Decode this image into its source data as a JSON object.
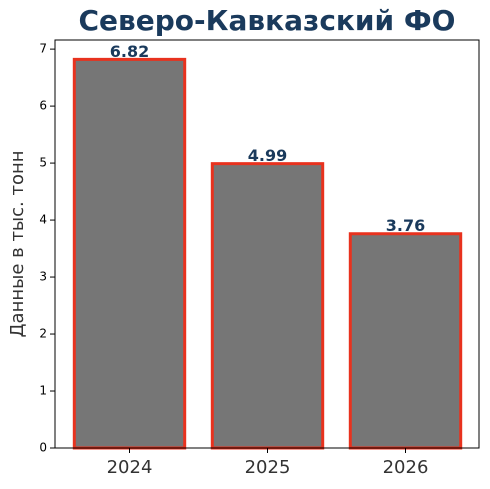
{
  "chart_data": {
    "type": "bar",
    "title": "Северо-Кавказский ФО",
    "ylabel": "Данные в тыс. тонн",
    "categories": [
      "2024",
      "2025",
      "2026"
    ],
    "values": [
      6.82,
      4.99,
      3.76
    ],
    "color": "#767676",
    "edgecolor": "#e8321e",
    "label_color": "#1a3a5c",
    "ylim": [
      0,
      7.16
    ],
    "yticks": [
      0,
      1,
      2,
      3,
      4,
      5,
      6,
      7
    ]
  }
}
